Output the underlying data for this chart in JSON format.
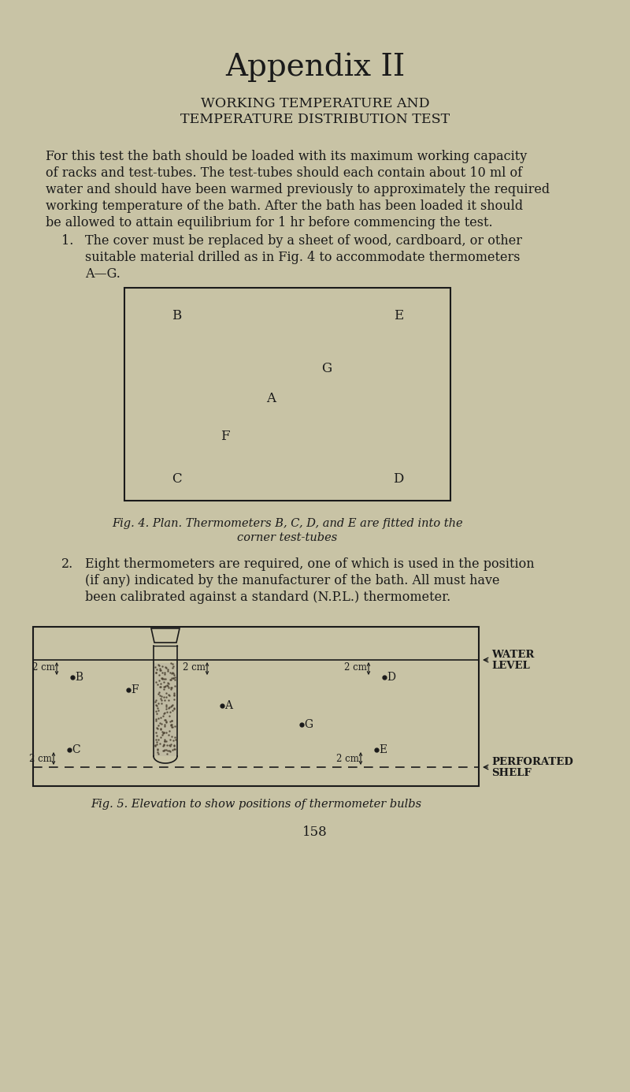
{
  "bg_color": "#c8c3a5",
  "text_color": "#1a1a1a",
  "title": "Appendix II",
  "subtitle_line1": "WORKING TEMPERATURE AND",
  "subtitle_line2": "TEMPERATURE DISTRIBUTION TEST",
  "body_text": [
    "For this test the bath should be loaded with its maximum working capacity",
    "of racks and test-tubes. The test-tubes should each contain about 10 ml of",
    "water and should have been warmed previously to approximately the required",
    "working temperature of the bath. After the bath has been loaded it should",
    "be allowed to attain equilibrium for 1 hr before commencing the test."
  ],
  "item1_text": [
    "The cover must be replaced by a sheet of wood, cardboard, or other",
    "suitable material drilled as in Fig. 4 to accommodate thermometers",
    "A—G."
  ],
  "item2_text": [
    "Eight thermometers are required, one of which is used in the position",
    "(if any) indicated by the manufacturer of the bath. All must have",
    "been calibrated against a standard (N.P.L.) thermometer."
  ],
  "fig4_caption_line1": "Fig. 4. Plan. Thermometers B, C, D, and E are fitted into the",
  "fig4_caption_line2": "corner test-tubes",
  "fig5_caption": "Fig. 5. Elevation to show positions of thermometer bulbs",
  "page_number": "158"
}
